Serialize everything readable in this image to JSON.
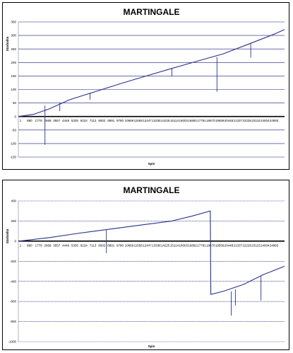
{
  "chart_data": [
    {
      "type": "line",
      "title": "MARTINGALE",
      "xlabel": "Spin",
      "ylabel": "Starbalita",
      "ylim": [
        -150,
        350
      ],
      "yticks": [
        350,
        300,
        250,
        200,
        150,
        100,
        50,
        0,
        -50,
        -100,
        -150
      ],
      "xlim": [
        1,
        26000
      ],
      "x_tick_labels": [
        "1",
        "890",
        "1779",
        "2668",
        "3557",
        "4446",
        "5335",
        "6224",
        "7113",
        "8002",
        "8891",
        "9780",
        "10669",
        "11558",
        "12447",
        "13336",
        "14225",
        "15114",
        "16003",
        "16892",
        "17781",
        "18670",
        "19559",
        "20448",
        "21337",
        "22226",
        "23115",
        "24004",
        "24893"
      ],
      "grid": "horizontal",
      "line_color": "#2b2f8e",
      "gridline_color": "#1a1a7a",
      "series": [
        {
          "points": [
            [
              1,
              0
            ],
            [
              1500,
              8
            ],
            [
              3000,
              28
            ],
            [
              5000,
              62
            ],
            [
              7500,
              92
            ],
            [
              10000,
              122
            ],
            [
              12500,
              150
            ],
            [
              15000,
              178
            ],
            [
              17500,
              205
            ],
            [
              20000,
              232
            ],
            [
              22500,
              268
            ],
            [
              25000,
              305
            ],
            [
              26000,
              322
            ]
          ],
          "drops": [
            [
              2600,
              40,
              -105
            ],
            [
              4050,
              52,
              20
            ],
            [
              7000,
              88,
              62
            ],
            [
              15000,
              178,
              148
            ],
            [
              19400,
              220,
              92
            ],
            [
              22700,
              272,
              218
            ]
          ]
        }
      ]
    },
    {
      "type": "line",
      "title": "MARTINGALE",
      "xlabel": "Spin",
      "ylabel": "Starbalita",
      "ylim": [
        -1000,
        400
      ],
      "yticks": [
        400,
        200,
        0,
        -200,
        -400,
        -600,
        -800,
        -1000
      ],
      "xlim": [
        1,
        26000
      ],
      "x_tick_labels": [
        "1",
        "890",
        "1779",
        "2668",
        "3557",
        "4446",
        "5335",
        "6224",
        "7113",
        "8002",
        "8891",
        "9780",
        "10669",
        "11558",
        "12447",
        "13336",
        "14225",
        "15114",
        "16003",
        "16892",
        "17781",
        "18670",
        "19559",
        "20448",
        "21337",
        "22226",
        "23115",
        "24004",
        "24893"
      ],
      "grid": "horizontal",
      "line_color": "#2b2f8e",
      "gridline_color": "#1a1a7a",
      "series": [
        {
          "points": [
            [
              1,
              0
            ],
            [
              3000,
              35
            ],
            [
              6000,
              80
            ],
            [
              9000,
              120
            ],
            [
              12000,
              160
            ],
            [
              15000,
              200
            ],
            [
              17000,
              250
            ],
            [
              18750,
              300
            ],
            [
              18800,
              -530
            ],
            [
              20000,
              -500
            ],
            [
              22000,
              -430
            ],
            [
              24000,
              -330
            ],
            [
              26000,
              -250
            ]
          ],
          "drops": [
            [
              8600,
              110,
              -120
            ],
            [
              20800,
              -500,
              -740
            ],
            [
              21200,
              -480,
              -640
            ],
            [
              23700,
              -350,
              -590
            ]
          ]
        }
      ]
    }
  ]
}
